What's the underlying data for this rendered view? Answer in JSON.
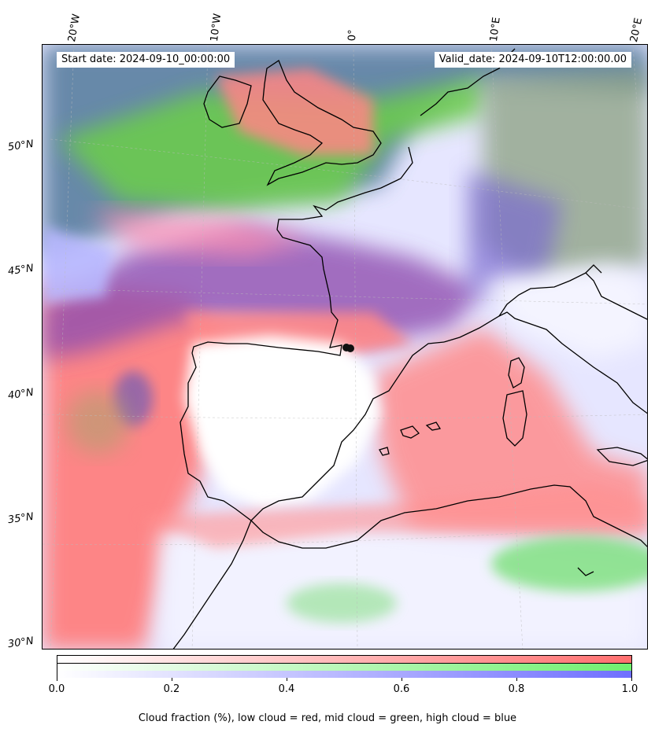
{
  "header": {
    "start_date": "Start date: 2024-09-10_00:00:00",
    "valid_date": "Valid_date: 2024-09-10T12:00:00.00"
  },
  "axes": {
    "lon_labels": [
      "20°W",
      "10°W",
      "0°",
      "10°E",
      "20°E"
    ],
    "lat_labels": [
      "50°N",
      "45°N",
      "40°N",
      "35°N",
      "30°N"
    ]
  },
  "colorbar": {
    "tick_labels": [
      "0.0",
      "0.2",
      "0.4",
      "0.6",
      "0.8",
      "1.0"
    ],
    "low_color": "#ff6f6f",
    "mid_color": "#6ff06f",
    "high_color": "#6f6fff",
    "caption": "Cloud fraction (%), low cloud = red, mid cloud = green, high cloud = blue"
  },
  "colors": {
    "low_cloud": "#ff7a7a",
    "mid_cloud": "#7ad84a",
    "high_cloud": "#7070e8",
    "coast": "#000000"
  }
}
